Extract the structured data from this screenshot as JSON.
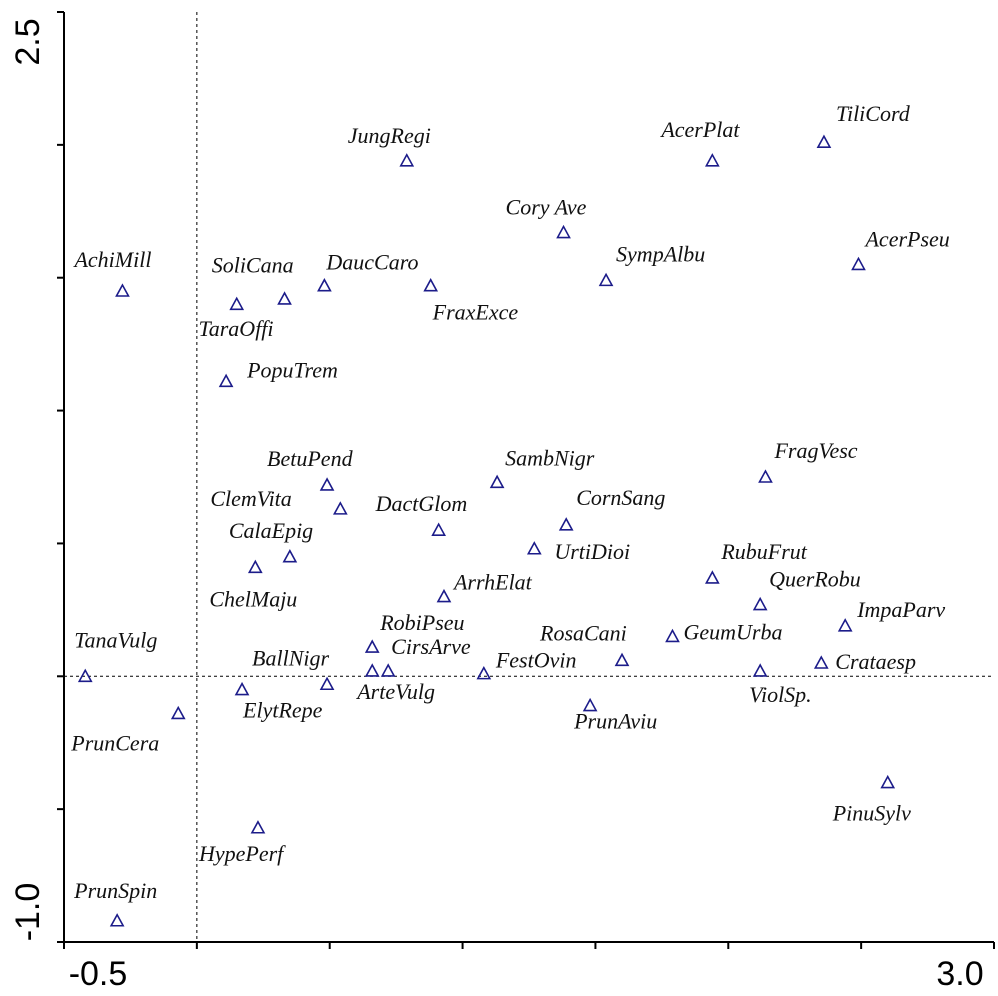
{
  "chart_data": {
    "type": "scatter",
    "xlim": [
      -0.5,
      3
    ],
    "ylim": [
      -1,
      2.5
    ],
    "xticks": [
      -0.5,
      {
        "value": 3,
        "label": "3.0"
      }
    ],
    "yticks": [
      {
        "value": -1,
        "label": "-1.0"
      },
      2.5
    ],
    "xminor": [
      0,
      0.5,
      1,
      1.5,
      2,
      2.5
    ],
    "yminor": [
      -0.5,
      0,
      0.5,
      1,
      1.5,
      2
    ],
    "x_refline": 0,
    "y_refline": 0,
    "color": "#1c1c8a",
    "labels": [
      "AchiMill",
      "SoliCana",
      "TaraOffi",
      "DaucCaro",
      "FraxExce",
      "JungRegi",
      "Cory Ave",
      "SympAlbu",
      "AcerPlat",
      "TiliCord",
      "AcerPseu",
      "PopuTrem",
      "BetuPend",
      "ClemVita",
      "CalaEpig",
      "ChelMaju",
      "DactGlom",
      "SambNigr",
      "CornSang",
      "UrtiDioi",
      "FragVesc",
      "RubuFrut",
      "QuerRobu",
      "ImpaParv",
      "ArrhElat",
      "RobiPseu",
      "ArteVulg",
      "CirsArve",
      "BallNigr",
      "FestOvin",
      "RosaCani",
      "GeumUrba",
      "Crataesp",
      "ViolSp.",
      "PrunAviu",
      "TanaVulg",
      "ElytRepe",
      "PrunCera",
      "PinuSylv",
      "HypePerf",
      "PrunSpin"
    ],
    "x": [
      -0.28,
      0.15,
      0.33,
      0.48,
      0.88,
      0.79,
      1.38,
      1.54,
      1.94,
      2.36,
      2.49,
      0.11,
      0.49,
      0.54,
      0.35,
      0.22,
      0.91,
      1.13,
      1.39,
      1.27,
      2.14,
      1.94,
      2.12,
      2.44,
      0.93,
      0.66,
      0.66,
      0.72,
      0.49,
      1.08,
      1.6,
      1.79,
      2.35,
      2.12,
      1.48,
      -0.42,
      0.17,
      -0.07,
      2.6,
      0.23,
      -0.3
    ],
    "y": [
      1.45,
      1.4,
      1.42,
      1.47,
      1.47,
      1.94,
      1.67,
      1.49,
      1.94,
      2.01,
      1.55,
      1.11,
      0.72,
      0.63,
      0.45,
      0.41,
      0.55,
      0.73,
      0.57,
      0.48,
      0.75,
      0.37,
      0.27,
      0.19,
      0.3,
      0.11,
      0.02,
      0.02,
      -0.03,
      0.01,
      0.06,
      0.15,
      0.05,
      0.02,
      -0.11,
      0,
      -0.05,
      -0.14,
      -0.4,
      -0.57,
      -0.92
    ]
  }
}
